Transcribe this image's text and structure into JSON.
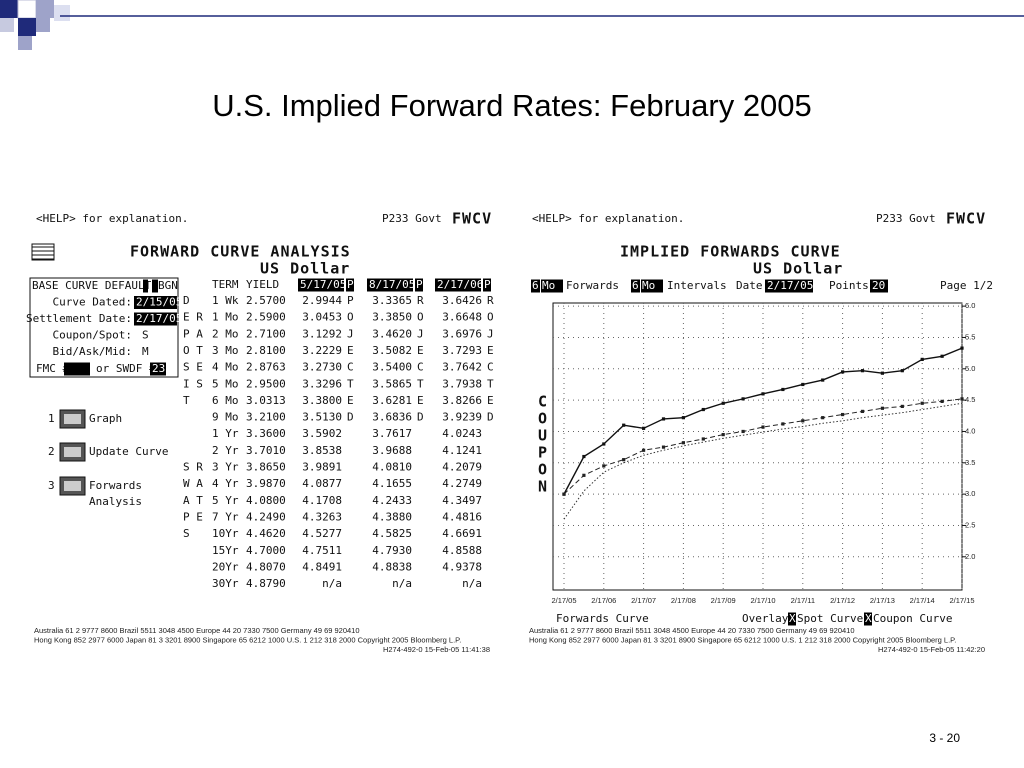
{
  "slide": {
    "title": "U.S. Implied Forward Rates: February 2005",
    "page_number": "3 - 20"
  },
  "left_panel": {
    "help": "<HELP> for explanation.",
    "code": "P233 Govt",
    "function": "FWCV",
    "heading": "FORWARD CURVE ANALYSIS",
    "currency": "US Dollar",
    "settings": [
      [
        "BASE CURVE DEFAULTS",
        "BGN"
      ],
      [
        "Curve Dated:",
        "2/15/05"
      ],
      [
        "Settlement Date:",
        "2/17/05"
      ],
      [
        "Coupon/Spot:",
        "S"
      ],
      [
        "Bid/Ask/Mid:",
        "M"
      ]
    ],
    "fmc": "FMC #",
    "swdf": "or SWDF #",
    "swdf_value": "23",
    "menu": [
      [
        "1",
        "Graph"
      ],
      [
        "2",
        "Update Curve"
      ],
      [
        "3",
        "Forwards",
        "Analysis"
      ]
    ],
    "columns": [
      "TERM",
      "YIELD",
      "5/17/05",
      "8/17/05",
      "2/17/06"
    ],
    "column_flag": "P",
    "rows": [
      {
        "side": "D",
        "term": "1 Wk",
        "yield": "2.5700",
        "f1": "2.9944",
        "g1": "P",
        "f2": "3.3365",
        "g2": "R",
        "f3": "3.6426",
        "g3": "R"
      },
      {
        "side": "E R",
        "term": "1 Mo",
        "yield": "2.5900",
        "f1": "3.0453",
        "g1": "O",
        "f2": "3.3850",
        "g2": "O",
        "f3": "3.6648",
        "g3": "O"
      },
      {
        "side": "P A",
        "term": "2 Mo",
        "yield": "2.7100",
        "f1": "3.1292",
        "g1": "J",
        "f2": "3.4620",
        "g2": "J",
        "f3": "3.6976",
        "g3": "J"
      },
      {
        "side": "O T",
        "term": "3 Mo",
        "yield": "2.8100",
        "f1": "3.2229",
        "g1": "E",
        "f2": "3.5082",
        "g2": "E",
        "f3": "3.7293",
        "g3": "E"
      },
      {
        "side": "S E",
        "term": "4 Mo",
        "yield": "2.8763",
        "f1": "3.2730",
        "g1": "C",
        "f2": "3.5400",
        "g2": "C",
        "f3": "3.7642",
        "g3": "C"
      },
      {
        "side": "I S",
        "term": "5 Mo",
        "yield": "2.9500",
        "f1": "3.3296",
        "g1": "T",
        "f2": "3.5865",
        "g2": "T",
        "f3": "3.7938",
        "g3": "T"
      },
      {
        "side": "T",
        "term": "6 Mo",
        "yield": "3.0313",
        "f1": "3.3800",
        "g1": "E",
        "f2": "3.6281",
        "g2": "E",
        "f3": "3.8266",
        "g3": "E"
      },
      {
        "term": "9 Mo",
        "yield": "3.2100",
        "f1": "3.5130",
        "g1": "D",
        "f2": "3.6836",
        "g2": "D",
        "f3": "3.9239",
        "g3": "D"
      },
      {
        "term": "1 Yr",
        "yield": "3.3600",
        "f1": "3.5902",
        "f2": "3.7617",
        "f3": "4.0243"
      },
      {
        "term": "2 Yr",
        "yield": "3.7010",
        "f1": "3.8538",
        "f2": "3.9688",
        "f3": "4.1241"
      },
      {
        "side": "S R",
        "term": "3 Yr",
        "yield": "3.8650",
        "f1": "3.9891",
        "f2": "4.0810",
        "f3": "4.2079"
      },
      {
        "side": "W A",
        "term": "4 Yr",
        "yield": "3.9870",
        "f1": "4.0877",
        "f2": "4.1655",
        "f3": "4.2749"
      },
      {
        "side": "A T",
        "term": "5 Yr",
        "yield": "4.0800",
        "f1": "4.1708",
        "f2": "4.2433",
        "f3": "4.3497"
      },
      {
        "side": "P E",
        "term": "7 Yr",
        "yield": "4.2490",
        "f1": "4.3263",
        "f2": "4.3880",
        "f3": "4.4816"
      },
      {
        "side": "S",
        "term": "10Yr",
        "yield": "4.4620",
        "f1": "4.5277",
        "f2": "4.5825",
        "f3": "4.6691"
      },
      {
        "term": "15Yr",
        "yield": "4.7000",
        "f1": "4.7511",
        "f2": "4.7930",
        "f3": "4.8588"
      },
      {
        "term": "20Yr",
        "yield": "4.8070",
        "f1": "4.8491",
        "f2": "4.8838",
        "f3": "4.9378"
      },
      {
        "term": "30Yr",
        "yield": "4.8790",
        "f1": "n/a",
        "f2": "n/a",
        "f3": "n/a"
      }
    ],
    "footer": [
      "Australia 61 2 9777 8600      Brazil 5511 3048 4500      Europe 44 20 7330 7500      Germany 49 69 920410",
      "Hong Kong 852 2977 6000 Japan 81 3 3201 8900 Singapore 65 6212 1000 U.S. 1 212 318 2000 Copyright 2005 Bloomberg L.P.",
      "H274-492-0 15-Feb-05 11:41:38"
    ]
  },
  "right_panel": {
    "help": "<HELP> for explanation.",
    "code": "P233 Govt",
    "function": "FWCV",
    "heading": "IMPLIED FORWARDS CURVE",
    "currency": "US Dollar",
    "forwards_n": "6",
    "forwards_unit": "Mo",
    "forwards_label": "Forwards",
    "intervals_n": "6",
    "intervals_unit": "Mo",
    "intervals_label": "Intervals",
    "date_label": "Date",
    "date": "2/17/05",
    "points_label": "Points",
    "points": "20",
    "page": "Page 1/2",
    "side_label": "COUPON",
    "overlay": "Overlay",
    "check": "X",
    "footer": [
      "Australia 61 2 9777 8600      Brazil 5511 3048 4500      Europe 44 20 7330 7500      Germany 49 69 920410",
      "Hong Kong 852 2977 6000 Japan 81 3 3201 8900 Singapore 65 6212 1000 U.S. 1 212 318 2000 Copyright 2005 Bloomberg L.P.",
      "H274-492-0 15-Feb-05 11:42:20"
    ]
  },
  "chart_data": {
    "type": "line",
    "categories": [
      "2/17/05",
      null,
      "2/17/06",
      null,
      "2/17/07",
      null,
      "2/17/08",
      null,
      "2/17/09",
      null,
      "2/17/10",
      null,
      "2/17/11",
      null,
      "2/17/12",
      null,
      "2/17/13",
      null,
      "2/17/14",
      null,
      "2/17/15"
    ],
    "series": [
      {
        "name": "Forwards Curve",
        "color": "#111111",
        "values": [
          3.0,
          3.6,
          3.8,
          4.1,
          4.05,
          4.2,
          4.22,
          4.35,
          4.45,
          4.52,
          4.6,
          4.67,
          4.75,
          4.82,
          4.95,
          4.97,
          4.93,
          4.97,
          5.15,
          5.2,
          5.33
        ]
      },
      {
        "name": "Spot Curve",
        "color": "#333333",
        "values": [
          2.6,
          3.05,
          3.35,
          3.5,
          3.62,
          3.7,
          3.77,
          3.83,
          3.89,
          3.94,
          3.99,
          4.04,
          4.08,
          4.13,
          4.17,
          4.22,
          4.26,
          4.3,
          4.35,
          4.4,
          4.45
        ]
      },
      {
        "name": "Coupon Curve",
        "color": "#222222",
        "values": [
          3.0,
          3.3,
          3.45,
          3.55,
          3.7,
          3.75,
          3.82,
          3.88,
          3.95,
          4.0,
          4.07,
          4.12,
          4.17,
          4.22,
          4.27,
          4.32,
          4.37,
          4.4,
          4.45,
          4.48,
          4.52
        ]
      }
    ],
    "ylim": [
      1.47,
      6.05
    ],
    "yticks": [
      {
        "value": 2,
        "label": "2.0"
      },
      2.5,
      {
        "value": 3,
        "label": "3.0"
      },
      3.5,
      {
        "value": 4,
        "label": "4.0"
      },
      4.5,
      {
        "value": 5,
        "label": "5.0"
      },
      5.5,
      {
        "value": 6,
        "label": "6.0"
      }
    ],
    "grid": true
  }
}
